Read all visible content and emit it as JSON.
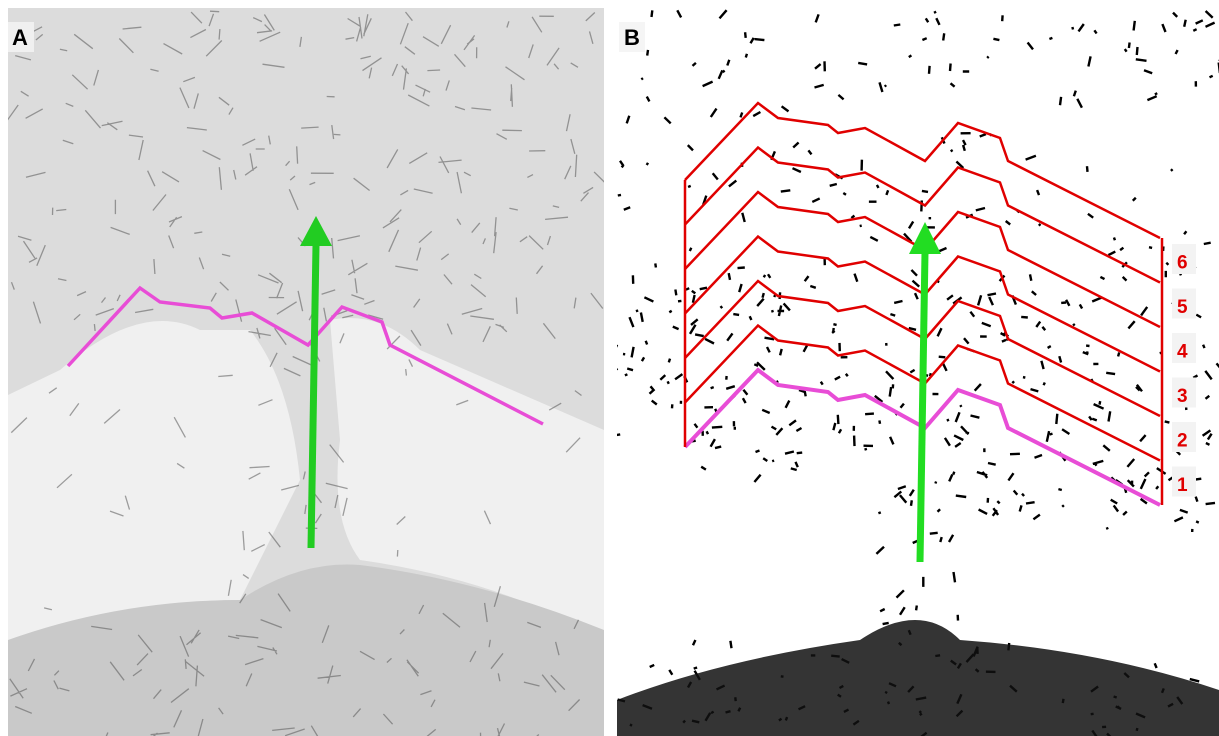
{
  "panels": [
    {
      "label": "A"
    },
    {
      "label": "B",
      "region_labels": [
        "1",
        "2",
        "3",
        "4",
        "5",
        "6"
      ]
    }
  ]
}
